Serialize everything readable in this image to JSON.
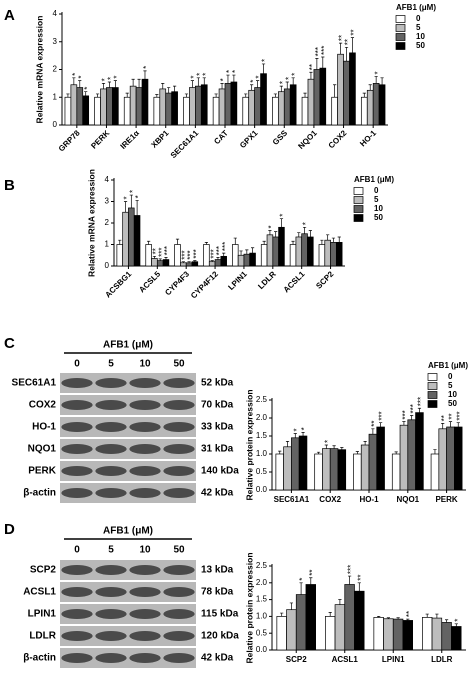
{
  "panels": [
    "A",
    "B",
    "C",
    "D"
  ],
  "chart_data": [
    {
      "type": "bar",
      "ylabel": "Relative mRNA expression",
      "legend_title": "AFB1 (μM)",
      "categories": [
        "GRP78",
        "PERK",
        "IRE1α",
        "XBP1",
        "SEC61A1",
        "CAT",
        "GPX1",
        "GSS",
        "NQO1",
        "COX2",
        "HO-1"
      ],
      "ylim": [
        0,
        4
      ],
      "yticks": [
        0,
        1,
        2,
        3,
        4
      ],
      "series": [
        {
          "name": "0",
          "color": "#ffffff",
          "values": [
            1,
            1,
            1,
            1,
            1,
            1,
            1,
            1,
            1,
            1,
            1
          ],
          "errors": [
            0.12,
            0.12,
            0.15,
            0.1,
            0.12,
            0.12,
            0.12,
            0.12,
            0.15,
            0.45,
            0.15
          ]
        },
        {
          "name": "5",
          "color": "#bdbdbd",
          "values": [
            1.45,
            1.3,
            1.4,
            1.3,
            1.35,
            1.3,
            1.25,
            1.2,
            1.65,
            2.55,
            1.25
          ],
          "errors": [
            0.25,
            0.2,
            0.25,
            0.2,
            0.25,
            0.2,
            0.2,
            0.2,
            0.25,
            0.4,
            0.2
          ],
          "sig": [
            "*",
            "*",
            null,
            null,
            "*",
            "*",
            "*",
            "*",
            "**",
            "**",
            null
          ]
        },
        {
          "name": "10",
          "color": "#636363",
          "values": [
            1.35,
            1.35,
            1.35,
            1.15,
            1.4,
            1.5,
            1.35,
            1.3,
            2.0,
            2.3,
            1.5
          ],
          "errors": [
            0.25,
            0.2,
            0.3,
            0.2,
            0.3,
            0.3,
            0.25,
            0.25,
            0.4,
            0.5,
            0.25
          ],
          "sig": [
            "*",
            "*",
            null,
            null,
            "*",
            "*",
            "*",
            "*",
            "***",
            "**",
            "*"
          ]
        },
        {
          "name": "50",
          "color": "#000000",
          "values": [
            1.05,
            1.35,
            1.65,
            1.2,
            1.45,
            1.55,
            1.85,
            1.45,
            2.05,
            2.6,
            1.45
          ],
          "errors": [
            0.15,
            0.25,
            0.3,
            0.2,
            0.25,
            0.25,
            0.35,
            0.25,
            0.4,
            0.55,
            0.25
          ],
          "sig": [
            "*",
            "*",
            "*",
            null,
            "*",
            "*",
            "*",
            "*",
            "***",
            "**",
            null
          ]
        }
      ]
    },
    {
      "type": "bar",
      "ylabel": "Relative mRNA expression",
      "legend_title": "AFB1 (μM)",
      "categories": [
        "ACSBG1",
        "ACSL5",
        "CYP4F3",
        "CYP4F12",
        "LPIN1",
        "LDLR",
        "ACSL1",
        "SCP2"
      ],
      "ylim": [
        0,
        4
      ],
      "yticks": [
        0,
        1,
        2,
        3,
        4
      ],
      "series": [
        {
          "name": "0",
          "color": "#ffffff",
          "values": [
            1,
            1,
            1,
            1,
            1,
            1,
            1,
            1
          ],
          "errors": [
            0.2,
            0.15,
            0.25,
            0.1,
            0.3,
            0.15,
            0.15,
            0.2
          ]
        },
        {
          "name": "5",
          "color": "#bdbdbd",
          "values": [
            2.5,
            0.35,
            0.15,
            0.2,
            0.5,
            1.45,
            1.35,
            1.2
          ],
          "errors": [
            0.5,
            0.1,
            0.05,
            0.05,
            0.2,
            0.2,
            0.2,
            0.25
          ],
          "sig": [
            "*",
            "**",
            "***",
            "***",
            null,
            "*",
            null,
            null
          ]
        },
        {
          "name": "10",
          "color": "#636363",
          "values": [
            2.7,
            0.25,
            0.15,
            0.3,
            0.55,
            1.35,
            1.5,
            1.1
          ],
          "errors": [
            0.6,
            0.08,
            0.05,
            0.1,
            0.2,
            0.25,
            0.3,
            0.2
          ],
          "sig": [
            "*",
            "***",
            "***",
            "***",
            null,
            null,
            "*",
            null
          ]
        },
        {
          "name": "50",
          "color": "#000000",
          "values": [
            2.35,
            0.3,
            0.2,
            0.45,
            0.6,
            1.8,
            1.35,
            1.1
          ],
          "errors": [
            0.7,
            0.1,
            0.05,
            0.15,
            0.25,
            0.4,
            0.3,
            0.25
          ],
          "sig": [
            "*",
            "***",
            "***",
            "***",
            null,
            "*",
            null,
            null
          ]
        }
      ]
    },
    {
      "type": "bar",
      "ylabel": "Relative protein expression",
      "legend_title": "AFB1 (μM)",
      "categories": [
        "SEC61A1",
        "COX2",
        "HO-1",
        "NQO1",
        "PERK"
      ],
      "ylim": [
        0,
        2.5
      ],
      "yticks": [
        {
          "value": 0,
          "label": "0.0"
        },
        0.5,
        {
          "value": 1,
          "label": "1.0"
        },
        1.5,
        {
          "value": 2,
          "label": "2.0"
        },
        2.5
      ],
      "series": [
        {
          "name": "0",
          "color": "#ffffff",
          "values": [
            1,
            1,
            1,
            1,
            1
          ],
          "errors": [
            0.08,
            0.05,
            0.07,
            0.06,
            0.12
          ]
        },
        {
          "name": "5",
          "color": "#bdbdbd",
          "values": [
            1.2,
            1.15,
            1.25,
            1.8,
            1.7
          ],
          "errors": [
            0.15,
            0.1,
            0.1,
            0.1,
            0.15
          ],
          "sig": [
            null,
            "*",
            null,
            "***",
            "**"
          ]
        },
        {
          "name": "10",
          "color": "#636363",
          "values": [
            1.45,
            1.15,
            1.55,
            1.95,
            1.75
          ],
          "errors": [
            0.12,
            0.08,
            0.15,
            0.12,
            0.15
          ],
          "sig": [
            "*",
            null,
            "**",
            "***",
            "**"
          ]
        },
        {
          "name": "50",
          "color": "#000000",
          "values": [
            1.5,
            1.12,
            1.75,
            2.15,
            1.75
          ],
          "errors": [
            0.1,
            0.06,
            0.12,
            0.12,
            0.12
          ],
          "sig": [
            "*",
            null,
            "***",
            "***",
            "***"
          ]
        }
      ]
    },
    {
      "type": "bar",
      "ylabel": "Relative protein expression",
      "categories": [
        "SCP2",
        "ACSL1",
        "LPIN1",
        "LDLR"
      ],
      "ylim": [
        0,
        2.5
      ],
      "yticks": [
        {
          "value": 0,
          "label": "0.0"
        },
        0.5,
        {
          "value": 1,
          "label": "1.0"
        },
        1.5,
        {
          "value": 2,
          "label": "2.0"
        },
        2.5
      ],
      "series": [
        {
          "color": "#ffffff",
          "values": [
            1,
            1,
            0.97,
            0.97
          ],
          "errors": [
            0.1,
            0.12,
            0.03,
            0.1
          ]
        },
        {
          "color": "#bdbdbd",
          "values": [
            1.2,
            1.35,
            0.93,
            0.95
          ],
          "errors": [
            0.2,
            0.15,
            0.03,
            0.12
          ]
        },
        {
          "color": "#636363",
          "values": [
            1.65,
            1.95,
            0.92,
            0.82
          ],
          "errors": [
            0.35,
            0.25,
            0.04,
            0.08
          ],
          "sig": [
            "*",
            "***",
            null,
            null
          ]
        },
        {
          "color": "#000000",
          "values": [
            1.95,
            1.75,
            0.88,
            0.7
          ],
          "errors": [
            0.2,
            0.25,
            0.04,
            0.08
          ],
          "sig": [
            "**",
            "**",
            "**",
            "*"
          ]
        }
      ]
    }
  ],
  "blots": [
    {
      "header": "AFB1 (μM)",
      "lanes": [
        "0",
        "5",
        "10",
        "50"
      ],
      "rows": [
        {
          "protein": "SEC61A1",
          "size": "52 kDa"
        },
        {
          "protein": "COX2",
          "size": "70 kDa"
        },
        {
          "protein": "HO-1",
          "size": "33 kDa"
        },
        {
          "protein": "NQO1",
          "size": "31 kDa"
        },
        {
          "protein": "PERK",
          "size": "140 kDa"
        },
        {
          "protein": "β-actin",
          "size": "42 kDa"
        }
      ]
    },
    {
      "header": "AFB1 (μM)",
      "lanes": [
        "0",
        "5",
        "10",
        "50"
      ],
      "rows": [
        {
          "protein": "SCP2",
          "size": "13 kDa"
        },
        {
          "protein": "ACSL1",
          "size": "78 kDa"
        },
        {
          "protein": "LPIN1",
          "size": "115 kDa"
        },
        {
          "protein": "LDLR",
          "size": "120 kDa"
        },
        {
          "protein": "β-actin",
          "size": "42 kDa"
        }
      ]
    }
  ]
}
